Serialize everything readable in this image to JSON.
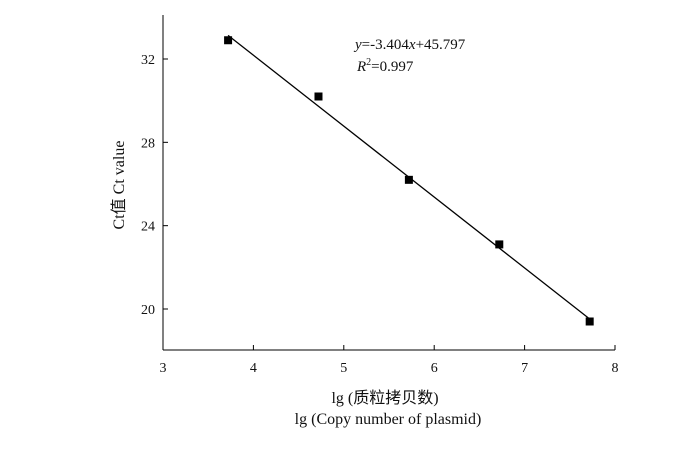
{
  "chart_data": {
    "type": "scatter",
    "xlabel_line1": "lg (质粒拷贝数)",
    "xlabel_line2": "lg (Copy number of plasmid)",
    "ylabel": "Ct值 Ct value",
    "xlim": [
      3,
      8
    ],
    "ylim": [
      18,
      34
    ],
    "xticks": [
      3,
      4,
      5,
      6,
      7,
      8
    ],
    "yticks": [
      20,
      24,
      28,
      32
    ],
    "points": [
      {
        "x": 3.72,
        "y": 32.9
      },
      {
        "x": 4.72,
        "y": 30.2
      },
      {
        "x": 5.72,
        "y": 26.2
      },
      {
        "x": 6.72,
        "y": 23.1
      },
      {
        "x": 7.72,
        "y": 19.4
      }
    ],
    "fit_line": {
      "x_start": 3.72,
      "x_end": 7.72,
      "slope": -3.404,
      "intercept": 45.797
    },
    "equation": {
      "y_var": "y",
      "equals_part": "=-3.404",
      "x_var": "x",
      "tail": "+45.797"
    },
    "r_squared": {
      "var": "R",
      "sup": "2",
      "value": "=0.997"
    },
    "marker_color": "#000000",
    "line_color": "#000000",
    "grid": false
  }
}
